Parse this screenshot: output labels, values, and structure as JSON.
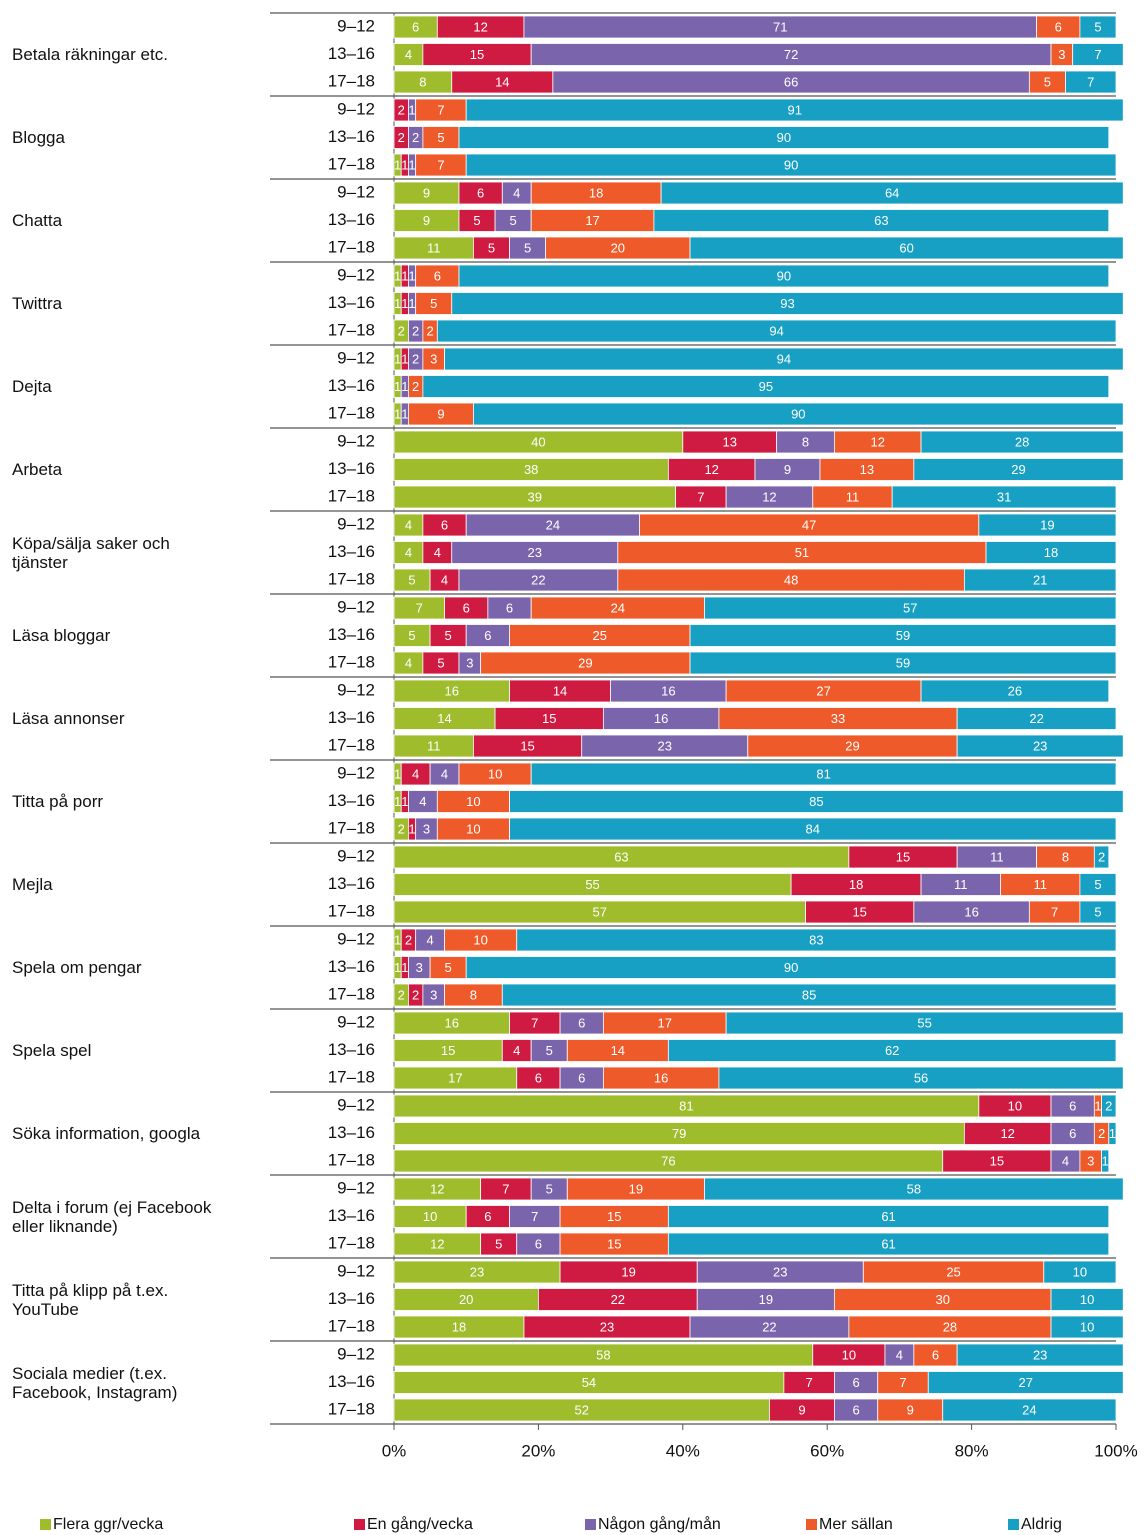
{
  "chart_data": {
    "type": "bar",
    "orientation": "horizontal",
    "stacked": true,
    "groups": [
      "9–12",
      "13–16",
      "17–18"
    ],
    "categories": [
      "Betala räkningar etc.",
      "Blogga",
      "Chatta",
      "Twittra",
      "Dejta",
      "Arbeta",
      "Köpa/sälja saker och tjänster",
      "Läsa bloggar",
      "Läsa annonser",
      "Titta på porr",
      "Mejla",
      "Spela om pengar",
      "Spela spel",
      "Söka information, googla",
      "Delta i forum (ej Facebook eller liknande)",
      "Titta på klipp på t.ex. YouTube",
      "Sociala medier (t.ex. Facebook, Instagram)"
    ],
    "series": [
      {
        "name": "Flera ggr/vecka",
        "color": "#9fbc2c",
        "values": [
          [
            6,
            4,
            8
          ],
          [
            null,
            null,
            1
          ],
          [
            9,
            9,
            11
          ],
          [
            1,
            1,
            2
          ],
          [
            1,
            1,
            1
          ],
          [
            40,
            38,
            39
          ],
          [
            4,
            4,
            5
          ],
          [
            7,
            5,
            4
          ],
          [
            16,
            14,
            11
          ],
          [
            1,
            1,
            2
          ],
          [
            63,
            55,
            57
          ],
          [
            1,
            1,
            2
          ],
          [
            16,
            15,
            17
          ],
          [
            81,
            79,
            76
          ],
          [
            12,
            10,
            12
          ],
          [
            23,
            20,
            18
          ],
          [
            58,
            54,
            52
          ]
        ]
      },
      {
        "name": "En gång/vecka",
        "color": "#cf1a42",
        "values": [
          [
            12,
            15,
            14
          ],
          [
            2,
            2,
            1
          ],
          [
            6,
            5,
            5
          ],
          [
            1,
            1,
            null
          ],
          [
            1,
            null,
            null
          ],
          [
            13,
            12,
            7
          ],
          [
            6,
            4,
            4
          ],
          [
            6,
            5,
            5
          ],
          [
            14,
            15,
            15
          ],
          [
            4,
            1,
            1
          ],
          [
            15,
            18,
            15
          ],
          [
            2,
            1,
            2
          ],
          [
            7,
            4,
            6
          ],
          [
            10,
            12,
            15
          ],
          [
            7,
            6,
            5
          ],
          [
            19,
            22,
            23
          ],
          [
            10,
            7,
            9
          ]
        ]
      },
      {
        "name": "Någon gång/mån",
        "color": "#7a65ad",
        "values": [
          [
            71,
            72,
            66
          ],
          [
            1,
            2,
            1
          ],
          [
            4,
            5,
            5
          ],
          [
            1,
            1,
            2
          ],
          [
            2,
            1,
            1
          ],
          [
            8,
            9,
            12
          ],
          [
            24,
            23,
            22
          ],
          [
            6,
            6,
            3
          ],
          [
            16,
            16,
            23
          ],
          [
            4,
            4,
            3
          ],
          [
            11,
            11,
            16
          ],
          [
            4,
            3,
            3
          ],
          [
            6,
            5,
            6
          ],
          [
            6,
            6,
            4
          ],
          [
            5,
            7,
            6
          ],
          [
            23,
            19,
            22
          ],
          [
            4,
            6,
            6
          ]
        ]
      },
      {
        "name": "Mer sällan",
        "color": "#ef5a2a",
        "values": [
          [
            6,
            3,
            5
          ],
          [
            7,
            5,
            7
          ],
          [
            18,
            17,
            20
          ],
          [
            6,
            5,
            2
          ],
          [
            3,
            2,
            9
          ],
          [
            12,
            13,
            11
          ],
          [
            47,
            51,
            48
          ],
          [
            24,
            25,
            29
          ],
          [
            27,
            33,
            29
          ],
          [
            10,
            10,
            10
          ],
          [
            8,
            11,
            7
          ],
          [
            10,
            5,
            8
          ],
          [
            17,
            14,
            16
          ],
          [
            1,
            2,
            3
          ],
          [
            19,
            15,
            15
          ],
          [
            25,
            30,
            28
          ],
          [
            6,
            7,
            9
          ]
        ]
      },
      {
        "name": "Aldrig",
        "color": "#17a0c3",
        "values": [
          [
            5,
            7,
            7
          ],
          [
            91,
            90,
            90
          ],
          [
            64,
            63,
            60
          ],
          [
            90,
            93,
            94
          ],
          [
            94,
            95,
            90
          ],
          [
            28,
            29,
            31
          ],
          [
            19,
            18,
            21
          ],
          [
            57,
            59,
            59
          ],
          [
            26,
            22,
            23
          ],
          [
            81,
            85,
            84
          ],
          [
            2,
            5,
            5
          ],
          [
            83,
            90,
            85
          ],
          [
            55,
            62,
            56
          ],
          [
            2,
            1,
            1
          ],
          [
            58,
            61,
            61
          ],
          [
            10,
            10,
            10
          ],
          [
            23,
            27,
            24
          ]
        ]
      }
    ],
    "xlim": [
      0,
      100
    ],
    "xticks": [
      {
        "value": 0,
        "label": "0%"
      },
      {
        "value": 20,
        "label": "20%"
      },
      {
        "value": 40,
        "label": "40%"
      },
      {
        "value": 60,
        "label": "60%"
      },
      {
        "value": 80,
        "label": "80%"
      },
      {
        "value": 100,
        "label": "100%"
      }
    ],
    "legend": "bottom"
  }
}
